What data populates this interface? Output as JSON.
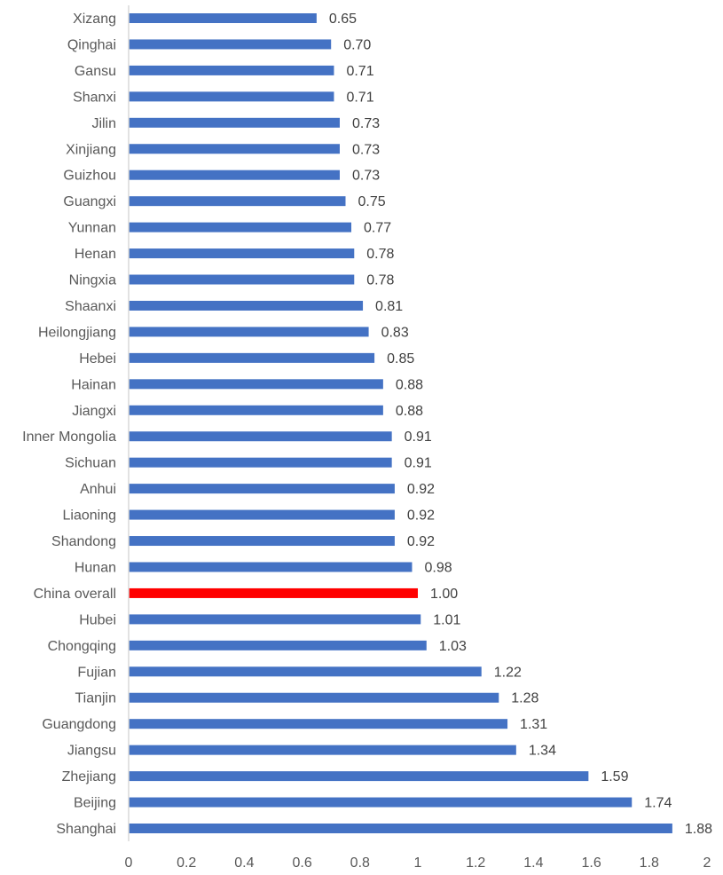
{
  "chart_data": {
    "type": "bar",
    "orientation": "horizontal",
    "title": "",
    "xlabel": "",
    "ylabel": "",
    "xlim": [
      0,
      2
    ],
    "xticks": [
      "0",
      "0.2",
      "0.4",
      "0.6",
      "0.8",
      "1",
      "1.2",
      "1.4",
      "1.6",
      "1.8",
      "2"
    ],
    "grid": false,
    "legend": "none",
    "colors": {
      "default": "#4472C4",
      "highlight": "#FF0000"
    },
    "highlight_category": "China overall",
    "categories": [
      "Xizang",
      "Qinghai",
      "Gansu",
      "Shanxi",
      "Jilin",
      "Xinjiang",
      "Guizhou",
      "Guangxi",
      "Yunnan",
      "Henan",
      "Ningxia",
      "Shaanxi",
      "Heilongjiang",
      "Hebei",
      "Hainan",
      "Jiangxi",
      "Inner Mongolia",
      "Sichuan",
      "Anhui",
      "Liaoning",
      "Shandong",
      "Hunan",
      "China overall",
      "Hubei",
      "Chongqing",
      "Fujian",
      "Tianjin",
      "Guangdong",
      "Jiangsu",
      "Zhejiang",
      "Beijing",
      "Shanghai"
    ],
    "values": [
      0.65,
      0.7,
      0.71,
      0.71,
      0.73,
      0.73,
      0.73,
      0.75,
      0.77,
      0.78,
      0.78,
      0.81,
      0.83,
      0.85,
      0.88,
      0.88,
      0.91,
      0.91,
      0.92,
      0.92,
      0.92,
      0.98,
      1.0,
      1.01,
      1.03,
      1.22,
      1.28,
      1.31,
      1.34,
      1.59,
      1.74,
      1.88
    ],
    "value_labels": [
      "0.65",
      "0.70",
      "0.71",
      "0.71",
      "0.73",
      "0.73",
      "0.73",
      "0.75",
      "0.77",
      "0.78",
      "0.78",
      "0.81",
      "0.83",
      "0.85",
      "0.88",
      "0.88",
      "0.91",
      "0.91",
      "0.92",
      "0.92",
      "0.92",
      "0.98",
      "1.00",
      "1.01",
      "1.03",
      "1.22",
      "1.28",
      "1.31",
      "1.34",
      "1.59",
      "1.74",
      "1.88"
    ]
  }
}
